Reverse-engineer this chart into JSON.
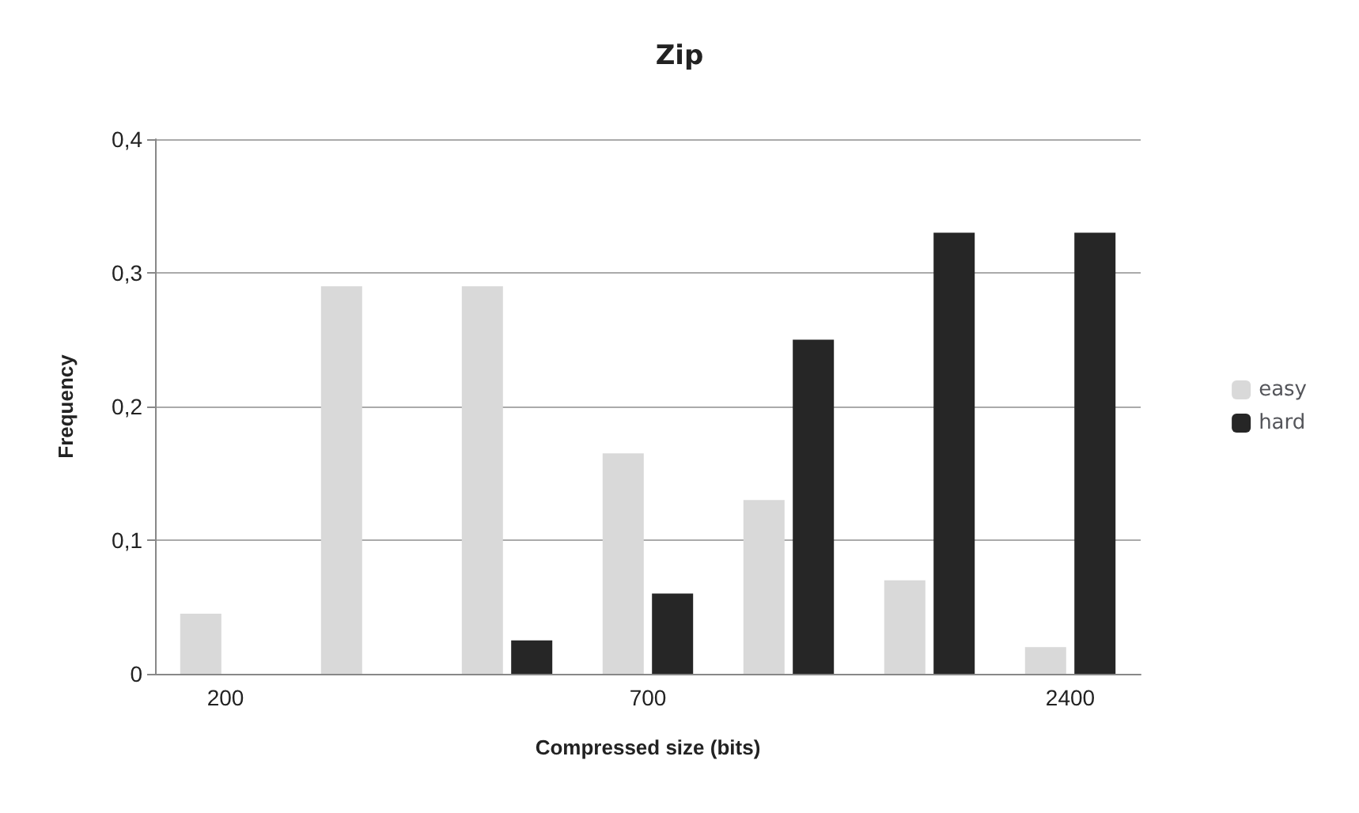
{
  "chart_data": {
    "type": "bar",
    "title": "Zip",
    "xlabel": "Compressed size (bits)",
    "ylabel": "Frequency",
    "categories": [
      "200",
      null,
      null,
      "700",
      null,
      null,
      "2400"
    ],
    "series": [
      {
        "name": "easy",
        "color": "#d9d9d9",
        "values": [
          0.045,
          0.29,
          0.29,
          0.165,
          0.13,
          0.07,
          0.02
        ]
      },
      {
        "name": "hard",
        "color": "#262626",
        "values": [
          0,
          0,
          0.025,
          0.06,
          0.25,
          0.33,
          0.33
        ]
      }
    ],
    "ylim": [
      0,
      0.4
    ],
    "yticks": [
      {
        "value": 0,
        "label": "0"
      },
      {
        "value": 0.1,
        "label": "0,1"
      },
      {
        "value": 0.2,
        "label": "0,2"
      },
      {
        "value": 0.3,
        "label": "0,3"
      },
      {
        "value": 0.4,
        "label": "0,4"
      }
    ],
    "grid": "y",
    "legend": "right"
  }
}
